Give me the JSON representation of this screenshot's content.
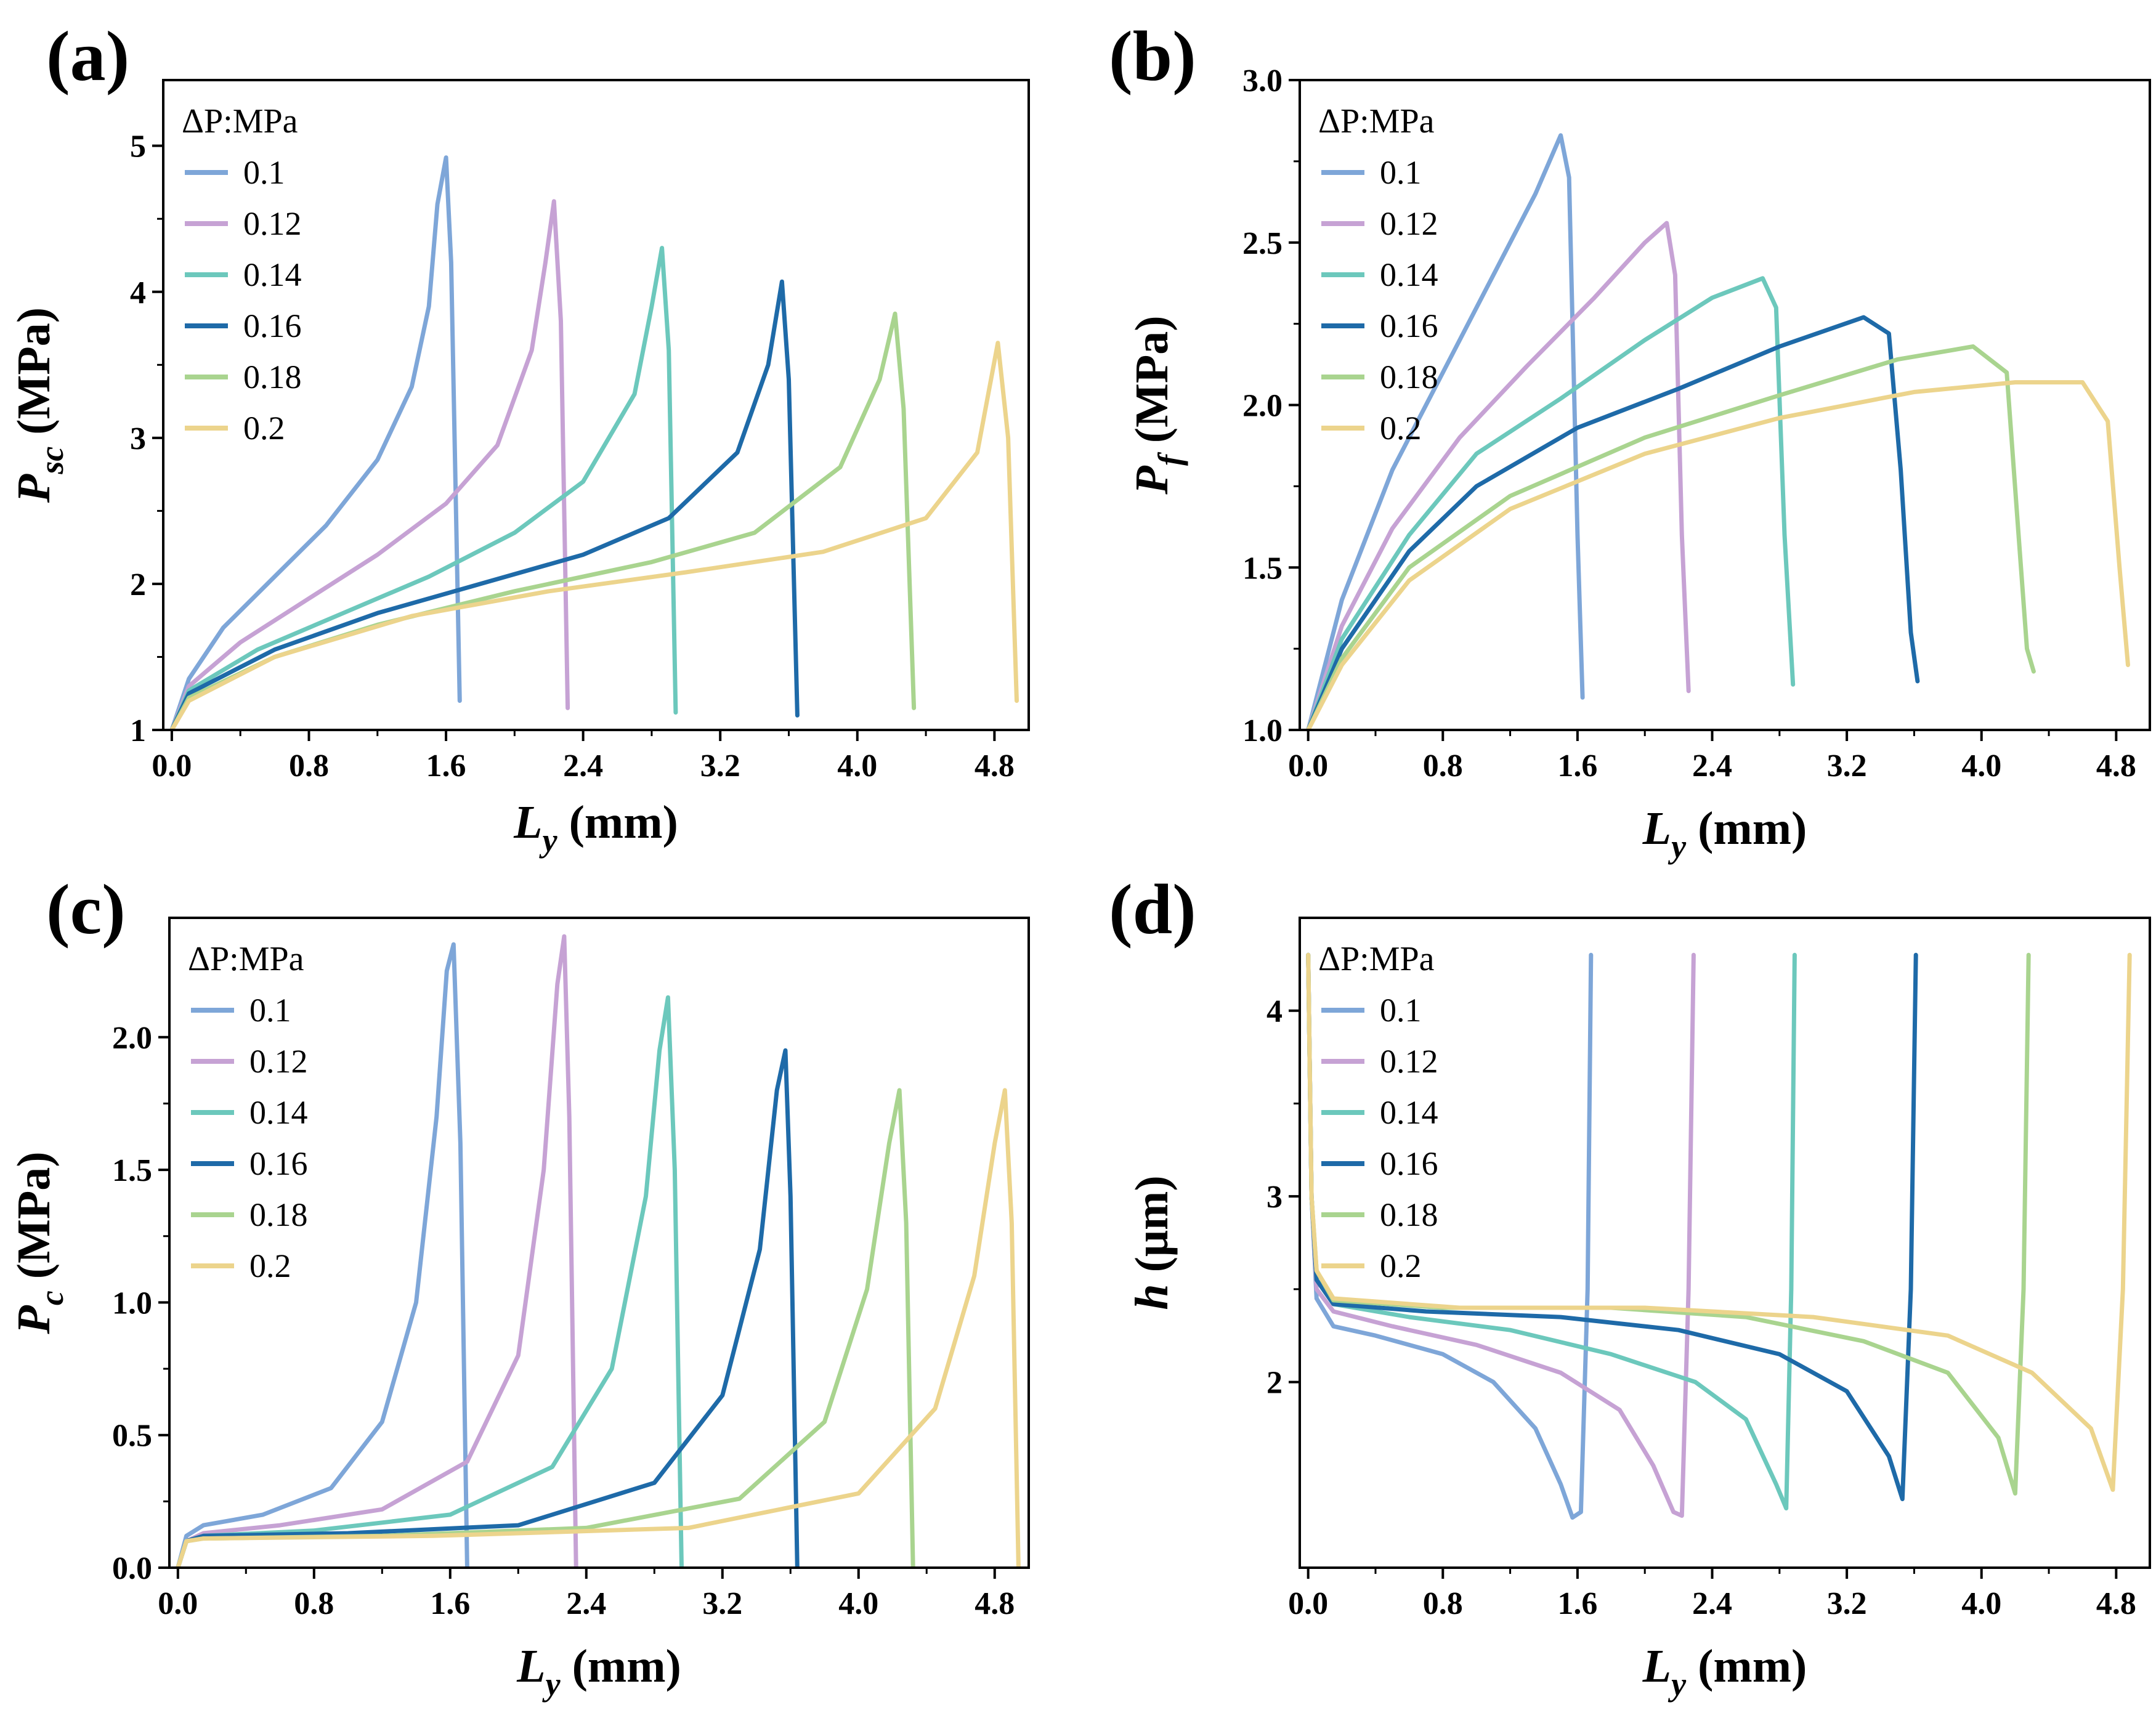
{
  "colors": {
    "0.1": "#7ea6d8",
    "0.12": "#c6a2d4",
    "0.14": "#6cc8bc",
    "0.16": "#1e6aa8",
    "0.18": "#a9d48f",
    "0.2": "#ecd48c"
  },
  "chart_data": [
    {
      "id": "a",
      "type": "line",
      "panel_label": "(a)",
      "title": "",
      "ylabel_main": "P",
      "ylabel_sub": "sc",
      "ylabel_unit": " (MPa)",
      "xlabel_main": "L",
      "xlabel_sub": "y",
      "xlabel_unit": " (mm)",
      "xlim": [
        -0.05,
        5.0
      ],
      "ylim": [
        1,
        5.45
      ],
      "xticks": [
        0.0,
        0.8,
        1.6,
        2.4,
        3.2,
        4.0,
        4.8
      ],
      "xtick_labels": [
        "0.0",
        "0.8",
        "1.6",
        "2.4",
        "3.2",
        "4.0",
        "4.8"
      ],
      "yticks": [
        1,
        2,
        3,
        4,
        5
      ],
      "ytick_labels": [
        "1",
        "2",
        "3",
        "4",
        "5"
      ],
      "legend_title": "ΔP:MPa",
      "legend_position": "top-left",
      "series": [
        {
          "name": "0.1",
          "x": [
            0,
            0.1,
            0.3,
            0.6,
            0.9,
            1.2,
            1.4,
            1.5,
            1.55,
            1.6,
            1.63,
            1.68
          ],
          "y": [
            1.0,
            1.35,
            1.7,
            2.05,
            2.4,
            2.85,
            3.35,
            3.9,
            4.6,
            4.92,
            4.2,
            1.2
          ]
        },
        {
          "name": "0.12",
          "x": [
            0,
            0.1,
            0.4,
            0.8,
            1.2,
            1.6,
            1.9,
            2.1,
            2.18,
            2.23,
            2.27,
            2.31
          ],
          "y": [
            1.0,
            1.3,
            1.6,
            1.9,
            2.2,
            2.55,
            2.95,
            3.6,
            4.2,
            4.62,
            3.8,
            1.15
          ]
        },
        {
          "name": "0.14",
          "x": [
            0,
            0.1,
            0.5,
            1.0,
            1.5,
            2.0,
            2.4,
            2.7,
            2.8,
            2.86,
            2.9,
            2.94
          ],
          "y": [
            1.0,
            1.27,
            1.55,
            1.8,
            2.05,
            2.35,
            2.7,
            3.3,
            3.9,
            4.3,
            3.6,
            1.12
          ]
        },
        {
          "name": "0.16",
          "x": [
            0,
            0.1,
            0.6,
            1.2,
            1.8,
            2.4,
            2.9,
            3.3,
            3.48,
            3.56,
            3.6,
            3.65
          ],
          "y": [
            1.0,
            1.25,
            1.55,
            1.8,
            2.0,
            2.2,
            2.45,
            2.9,
            3.5,
            4.07,
            3.4,
            1.1
          ]
        },
        {
          "name": "0.18",
          "x": [
            0,
            0.1,
            0.6,
            1.2,
            2.0,
            2.8,
            3.4,
            3.9,
            4.13,
            4.22,
            4.27,
            4.33
          ],
          "y": [
            1.0,
            1.22,
            1.5,
            1.72,
            1.95,
            2.15,
            2.35,
            2.8,
            3.4,
            3.85,
            3.2,
            1.15
          ]
        },
        {
          "name": "0.2",
          "x": [
            0,
            0.1,
            0.6,
            1.4,
            2.2,
            3.0,
            3.8,
            4.4,
            4.7,
            4.82,
            4.88,
            4.93
          ],
          "y": [
            1.0,
            1.2,
            1.5,
            1.78,
            1.95,
            2.08,
            2.22,
            2.45,
            2.9,
            3.65,
            3.0,
            1.2
          ]
        }
      ]
    },
    {
      "id": "b",
      "type": "line",
      "panel_label": "(b)",
      "title": "",
      "ylabel_main": "P",
      "ylabel_sub": "f",
      "ylabel_unit": " (MPa)",
      "xlabel_main": "L",
      "xlabel_sub": "y",
      "xlabel_unit": " (mm)",
      "xlim": [
        -0.05,
        5.0
      ],
      "ylim": [
        1.0,
        3.0
      ],
      "xticks": [
        0.0,
        0.8,
        1.6,
        2.4,
        3.2,
        4.0,
        4.8
      ],
      "xtick_labels": [
        "0.0",
        "0.8",
        "1.6",
        "2.4",
        "3.2",
        "4.0",
        "4.8"
      ],
      "yticks": [
        1.0,
        1.5,
        2.0,
        2.5,
        3.0
      ],
      "ytick_labels": [
        "1.0",
        "1.5",
        "2.0",
        "2.5",
        "3.0"
      ],
      "legend_title": "ΔP:MPa",
      "legend_position": "top-left",
      "series": [
        {
          "name": "0.1",
          "x": [
            0,
            0.2,
            0.5,
            0.8,
            1.1,
            1.35,
            1.5,
            1.55,
            1.6,
            1.63
          ],
          "y": [
            1.0,
            1.4,
            1.8,
            2.1,
            2.4,
            2.65,
            2.83,
            2.7,
            1.6,
            1.1
          ]
        },
        {
          "name": "0.12",
          "x": [
            0,
            0.2,
            0.5,
            0.9,
            1.3,
            1.7,
            2.0,
            2.13,
            2.18,
            2.22,
            2.26
          ],
          "y": [
            1.0,
            1.32,
            1.62,
            1.9,
            2.12,
            2.33,
            2.5,
            2.56,
            2.4,
            1.6,
            1.12
          ]
        },
        {
          "name": "0.14",
          "x": [
            0,
            0.2,
            0.6,
            1.0,
            1.5,
            2.0,
            2.4,
            2.7,
            2.78,
            2.83,
            2.88
          ],
          "y": [
            1.0,
            1.28,
            1.6,
            1.85,
            2.02,
            2.2,
            2.33,
            2.39,
            2.3,
            1.6,
            1.14
          ]
        },
        {
          "name": "0.16",
          "x": [
            0,
            0.2,
            0.6,
            1.0,
            1.6,
            2.2,
            2.8,
            3.3,
            3.45,
            3.52,
            3.58,
            3.62
          ],
          "y": [
            1.0,
            1.25,
            1.55,
            1.75,
            1.93,
            2.05,
            2.18,
            2.27,
            2.22,
            1.8,
            1.3,
            1.15
          ]
        },
        {
          "name": "0.18",
          "x": [
            0,
            0.2,
            0.6,
            1.2,
            2.0,
            2.8,
            3.5,
            3.95,
            4.15,
            4.22,
            4.27,
            4.31
          ],
          "y": [
            1.0,
            1.22,
            1.5,
            1.72,
            1.9,
            2.03,
            2.14,
            2.18,
            2.1,
            1.6,
            1.25,
            1.18
          ]
        },
        {
          "name": "0.2",
          "x": [
            0,
            0.2,
            0.6,
            1.2,
            2.0,
            2.8,
            3.6,
            4.2,
            4.6,
            4.75,
            4.82,
            4.87
          ],
          "y": [
            1.0,
            1.2,
            1.46,
            1.68,
            1.85,
            1.96,
            2.04,
            2.07,
            2.07,
            1.95,
            1.5,
            1.2
          ]
        }
      ]
    },
    {
      "id": "c",
      "type": "line",
      "panel_label": "(c)",
      "title": "",
      "ylabel_main": "P",
      "ylabel_sub": "c",
      "ylabel_unit": " (MPa)",
      "xlabel_main": "L",
      "xlabel_sub": "y",
      "xlabel_unit": " (mm)",
      "xlim": [
        -0.05,
        5.0
      ],
      "ylim": [
        0.0,
        2.45
      ],
      "xticks": [
        0.0,
        0.8,
        1.6,
        2.4,
        3.2,
        4.0,
        4.8
      ],
      "xtick_labels": [
        "0.0",
        "0.8",
        "1.6",
        "2.4",
        "3.2",
        "4.0",
        "4.8"
      ],
      "yticks": [
        0.0,
        0.5,
        1.0,
        1.5,
        2.0
      ],
      "ytick_labels": [
        "0.0",
        "0.5",
        "1.0",
        "1.5",
        "2.0"
      ],
      "legend_title": "ΔP:MPa",
      "legend_position": "top-left",
      "series": [
        {
          "name": "0.1",
          "x": [
            0,
            0.05,
            0.15,
            0.5,
            0.9,
            1.2,
            1.4,
            1.52,
            1.58,
            1.62,
            1.66,
            1.7
          ],
          "y": [
            0.0,
            0.12,
            0.16,
            0.2,
            0.3,
            0.55,
            1.0,
            1.7,
            2.25,
            2.35,
            1.6,
            0.0
          ]
        },
        {
          "name": "0.12",
          "x": [
            0,
            0.05,
            0.15,
            0.6,
            1.2,
            1.7,
            2.0,
            2.15,
            2.23,
            2.27,
            2.3,
            2.34
          ],
          "y": [
            0.0,
            0.1,
            0.13,
            0.16,
            0.22,
            0.4,
            0.8,
            1.5,
            2.2,
            2.38,
            1.7,
            0.0
          ]
        },
        {
          "name": "0.14",
          "x": [
            0,
            0.05,
            0.15,
            0.8,
            1.6,
            2.2,
            2.55,
            2.75,
            2.83,
            2.88,
            2.92,
            2.96
          ],
          "y": [
            0.0,
            0.1,
            0.12,
            0.14,
            0.2,
            0.38,
            0.75,
            1.4,
            1.95,
            2.15,
            1.5,
            0.0
          ]
        },
        {
          "name": "0.16",
          "x": [
            0,
            0.05,
            0.15,
            1.0,
            2.0,
            2.8,
            3.2,
            3.42,
            3.52,
            3.57,
            3.6,
            3.64
          ],
          "y": [
            0.0,
            0.1,
            0.12,
            0.13,
            0.16,
            0.32,
            0.65,
            1.2,
            1.8,
            1.95,
            1.4,
            0.0
          ]
        },
        {
          "name": "0.18",
          "x": [
            0,
            0.05,
            0.15,
            1.2,
            2.4,
            3.3,
            3.8,
            4.05,
            4.18,
            4.24,
            4.28,
            4.32
          ],
          "y": [
            0.0,
            0.1,
            0.11,
            0.12,
            0.15,
            0.26,
            0.55,
            1.05,
            1.6,
            1.8,
            1.3,
            0.0
          ]
        },
        {
          "name": "0.2",
          "x": [
            0,
            0.05,
            0.15,
            1.5,
            3.0,
            4.0,
            4.45,
            4.68,
            4.8,
            4.86,
            4.9,
            4.94
          ],
          "y": [
            0.0,
            0.1,
            0.11,
            0.12,
            0.15,
            0.28,
            0.6,
            1.1,
            1.6,
            1.8,
            1.3,
            0.0
          ]
        }
      ]
    },
    {
      "id": "d",
      "type": "line",
      "panel_label": "(d)",
      "title": "",
      "ylabel_main": "h",
      "ylabel_sub": "",
      "ylabel_unit": " (μm)",
      "xlabel_main": "L",
      "xlabel_sub": "y",
      "xlabel_unit": " (mm)",
      "xlim": [
        -0.05,
        5.0
      ],
      "ylim": [
        1.0,
        4.5
      ],
      "xticks": [
        0.0,
        0.8,
        1.6,
        2.4,
        3.2,
        4.0,
        4.8
      ],
      "xtick_labels": [
        "0.0",
        "0.8",
        "1.6",
        "2.4",
        "3.2",
        "4.0",
        "4.8"
      ],
      "yticks": [
        2,
        3,
        4
      ],
      "ytick_labels": [
        "2",
        "3",
        "4"
      ],
      "legend_title": "ΔP:MPa",
      "legend_position": "top-left",
      "series": [
        {
          "name": "0.1",
          "x": [
            0.0,
            0.02,
            0.05,
            0.15,
            0.4,
            0.8,
            1.1,
            1.35,
            1.5,
            1.57,
            1.62,
            1.66,
            1.68
          ],
          "y": [
            4.3,
            3.0,
            2.45,
            2.3,
            2.25,
            2.15,
            2.0,
            1.75,
            1.45,
            1.27,
            1.3,
            2.5,
            4.3
          ]
        },
        {
          "name": "0.12",
          "x": [
            0.0,
            0.02,
            0.05,
            0.15,
            0.5,
            1.0,
            1.5,
            1.85,
            2.05,
            2.17,
            2.22,
            2.26,
            2.29
          ],
          "y": [
            4.3,
            3.0,
            2.5,
            2.38,
            2.3,
            2.2,
            2.05,
            1.85,
            1.55,
            1.3,
            1.28,
            2.5,
            4.3
          ]
        },
        {
          "name": "0.14",
          "x": [
            0.0,
            0.02,
            0.05,
            0.15,
            0.6,
            1.2,
            1.8,
            2.3,
            2.6,
            2.78,
            2.84,
            2.87,
            2.89
          ],
          "y": [
            4.3,
            3.0,
            2.55,
            2.42,
            2.35,
            2.28,
            2.15,
            2.0,
            1.8,
            1.45,
            1.32,
            2.5,
            4.3
          ]
        },
        {
          "name": "0.16",
          "x": [
            0.0,
            0.02,
            0.05,
            0.15,
            0.7,
            1.5,
            2.2,
            2.8,
            3.2,
            3.45,
            3.53,
            3.58,
            3.61
          ],
          "y": [
            4.3,
            3.0,
            2.55,
            2.42,
            2.38,
            2.35,
            2.28,
            2.15,
            1.95,
            1.6,
            1.37,
            2.5,
            4.3
          ]
        },
        {
          "name": "0.18",
          "x": [
            0.0,
            0.02,
            0.05,
            0.15,
            0.8,
            1.8,
            2.6,
            3.3,
            3.8,
            4.1,
            4.2,
            4.25,
            4.28
          ],
          "y": [
            4.3,
            3.0,
            2.6,
            2.44,
            2.4,
            2.4,
            2.35,
            2.22,
            2.05,
            1.7,
            1.4,
            2.5,
            4.3
          ]
        },
        {
          "name": "0.2",
          "x": [
            0.0,
            0.02,
            0.05,
            0.15,
            0.9,
            2.0,
            3.0,
            3.8,
            4.3,
            4.65,
            4.78,
            4.84,
            4.88
          ],
          "y": [
            4.3,
            3.0,
            2.6,
            2.45,
            2.4,
            2.4,
            2.35,
            2.25,
            2.05,
            1.75,
            1.42,
            2.5,
            4.3
          ]
        }
      ]
    }
  ]
}
